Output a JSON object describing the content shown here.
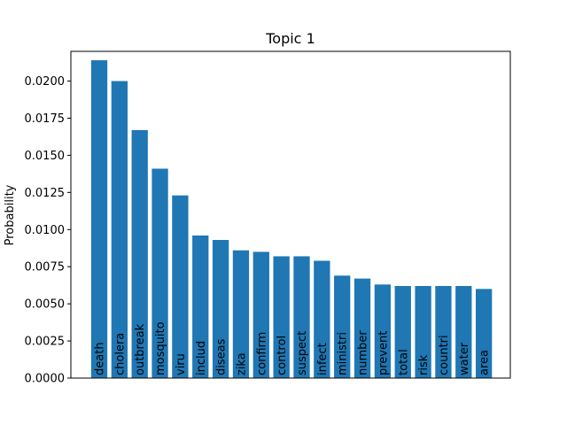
{
  "chart_data": {
    "type": "bar",
    "title": "Topic 1",
    "xlabel": "",
    "ylabel": "Probability",
    "ylim": [
      0,
      0.022
    ],
    "yticks": [
      "0.0000",
      "0.0025",
      "0.0050",
      "0.0075",
      "0.0100",
      "0.0125",
      "0.0150",
      "0.0175",
      "0.0200"
    ],
    "ytick_values": [
      0,
      0.0025,
      0.005,
      0.0075,
      0.01,
      0.0125,
      0.015,
      0.0175,
      0.02
    ],
    "grid": false,
    "bar_color": "#1f77b4",
    "categories": [
      "death",
      "cholera",
      "outbreak",
      "mosquito",
      "viru",
      "includ",
      "diseas",
      "zika",
      "confirm",
      "control",
      "suspect",
      "infect",
      "ministri",
      "number",
      "prevent",
      "total",
      "risk",
      "countri",
      "water",
      "area"
    ],
    "values": [
      0.0214,
      0.02,
      0.0167,
      0.0141,
      0.0123,
      0.0096,
      0.0093,
      0.0086,
      0.0085,
      0.0082,
      0.0082,
      0.0079,
      0.0069,
      0.0067,
      0.0063,
      0.0062,
      0.0062,
      0.0062,
      0.0062,
      0.006
    ]
  }
}
